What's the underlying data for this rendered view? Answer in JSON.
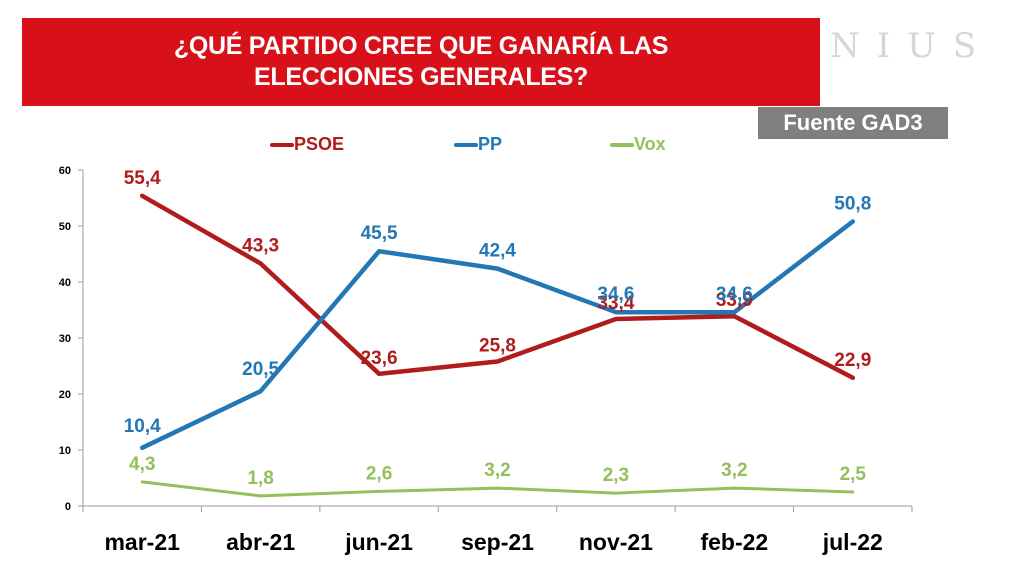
{
  "header": {
    "title": "¿QUÉ PARTIDO CREE QUE GANARÍA LAS ELECCIONES GENERALES?",
    "logo": "NIUS",
    "source": "Fuente GAD3"
  },
  "chart_data": {
    "type": "line",
    "title": "¿QUÉ PARTIDO CREE QUE GANARÍA LAS ELECCIONES GENERALES?",
    "xlabel": "",
    "ylabel": "",
    "ylim": [
      0,
      60
    ],
    "yticks": [
      0,
      10,
      20,
      30,
      40,
      50,
      60
    ],
    "categories": [
      "mar-21",
      "abr-21",
      "jun-21",
      "sep-21",
      "nov-21",
      "feb-22",
      "jul-22"
    ],
    "legend_position": "top",
    "series": [
      {
        "name": "PSOE",
        "color": "#b01c1c",
        "values": [
          55.4,
          43.3,
          23.6,
          25.8,
          33.4,
          33.9,
          22.9
        ],
        "labels": [
          "55,4",
          "43,3",
          "23,6",
          "25,8",
          "33,4",
          "33,9",
          "22,9"
        ]
      },
      {
        "name": "PP",
        "color": "#2377b5",
        "values": [
          10.4,
          20.5,
          45.5,
          42.4,
          34.6,
          34.6,
          50.8
        ],
        "labels": [
          "10,4",
          "20,5",
          "45,5",
          "42,4",
          "34,6",
          "34,6",
          "50,8"
        ]
      },
      {
        "name": "Vox",
        "color": "#93bf5d",
        "values": [
          4.3,
          1.8,
          2.6,
          3.2,
          2.3,
          3.2,
          2.5
        ],
        "labels": [
          "4,3",
          "1,8",
          "2,6",
          "3,2",
          "2,3",
          "3,2",
          "2,5"
        ]
      }
    ]
  }
}
